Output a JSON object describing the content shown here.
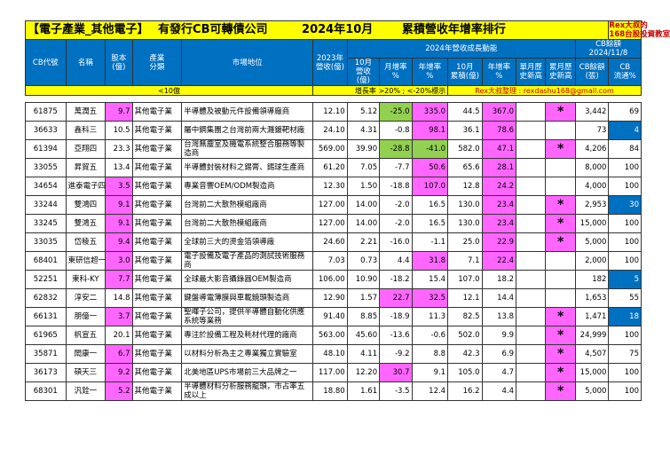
{
  "title": {
    "category": "【電子產業_其他電子】",
    "subtitle": "有發行CB可轉債公司",
    "month": "2024年10月",
    "ranking": "累積營收年增率排行",
    "rex_line1": "Rex大叔的",
    "rex_line2": "168台股投資教室"
  },
  "header": {
    "cb_code": "CB代號",
    "name": "名稱",
    "capital": "股本\n(億)",
    "industry": "產業\n分類",
    "market_position": "市場地位",
    "rev2023": "2023年\n營收(億)",
    "growth_group": "2024年營收成長動能",
    "oct_rev": "10月\n營收(億)",
    "mom": "月增率\n%",
    "yoy": "年增率\n%",
    "oct_cum": "10月\n累積(億)",
    "cum_yoy": "年增率\n%",
    "single_month_high": "單月歷\n史新高",
    "cum_month_high": "累月歷\n史新高",
    "cb_remaining_label": "CB餘額",
    "cb_date": "2024/11/8",
    "cb_balance": "CB餘額\n(張)",
    "cb_ratio": "CB\n流通%"
  },
  "note": {
    "small_cap": "<10億",
    "growth_legend": "增長率 >20% ; <-20%標示",
    "credit": "Rex大叔整理 : rexdashu168@gmail.com"
  },
  "rows": [
    {
      "code": "61875",
      "name": "萬潤五",
      "capital": "9.7",
      "cap_hl": true,
      "industry": "其他電子業",
      "position": "半導體及被動元件設備領導廠商",
      "rev2023": "12.10",
      "oct": "5.12",
      "mom": "-25.0",
      "mom_hl": "grn",
      "yoy": "335.0",
      "yoy_hl": "mag",
      "cum": "44.5",
      "cum_yoy": "367.0",
      "cum_yoy_hl": "mag",
      "smh": "",
      "cmh": "*",
      "cb_bal": "3,442",
      "cb_pct": "69",
      "pct_hl": ""
    },
    {
      "code": "36633",
      "name": "鑫科三",
      "capital": "10.5",
      "cap_hl": false,
      "industry": "其他電子業",
      "position": "屬中鋼集團之台灣前兩大濺鍍靶材廠",
      "rev2023": "24.10",
      "oct": "4.31",
      "mom": "-0.8",
      "mom_hl": "",
      "yoy": "98.1",
      "yoy_hl": "mag",
      "cum": "36.1",
      "cum_yoy": "78.6",
      "cum_yoy_hl": "mag",
      "smh": "",
      "cmh": "",
      "cb_bal": "73",
      "cb_pct": "4",
      "pct_hl": "blue"
    },
    {
      "code": "61394",
      "name": "亞翔四",
      "capital": "23.3",
      "cap_hl": false,
      "industry": "其他電子業",
      "position": "台灣無塵室及機電系統整合服務等製造商",
      "rev2023": "569.00",
      "oct": "39.90",
      "mom": "-28.8",
      "mom_hl": "grn",
      "yoy": "-41.0",
      "yoy_hl": "grn",
      "cum": "582.0",
      "cum_yoy": "47.1",
      "cum_yoy_hl": "mag",
      "smh": "",
      "cmh": "*",
      "cb_bal": "4,206",
      "cb_pct": "84",
      "pct_hl": ""
    },
    {
      "code": "33055",
      "name": "昇貿五",
      "capital": "13.4",
      "cap_hl": false,
      "industry": "其他電子業",
      "position": "半導體封裝材料之錫膏、錫球生產商",
      "rev2023": "61.20",
      "oct": "7.05",
      "mom": "-7.7",
      "mom_hl": "",
      "yoy": "50.6",
      "yoy_hl": "mag",
      "cum": "65.6",
      "cum_yoy": "28.1",
      "cum_yoy_hl": "mag",
      "smh": "",
      "cmh": "",
      "cb_bal": "8,000",
      "cb_pct": "100",
      "pct_hl": ""
    },
    {
      "code": "34654",
      "name": "進泰電子四",
      "capital": "3.5",
      "cap_hl": true,
      "industry": "其他電子業",
      "position": "專業音響OEM/ODM製造商",
      "rev2023": "12.30",
      "oct": "1.50",
      "mom": "-18.8",
      "mom_hl": "",
      "yoy": "107.0",
      "yoy_hl": "mag",
      "cum": "12.8",
      "cum_yoy": "24.2",
      "cum_yoy_hl": "mag",
      "smh": "",
      "cmh": "",
      "cb_bal": "4,000",
      "cb_pct": "100",
      "pct_hl": ""
    },
    {
      "code": "33244",
      "name": "雙鴻四",
      "capital": "9.1",
      "cap_hl": true,
      "industry": "其他電子業",
      "position": "台灣前二大散熱模組廠商",
      "rev2023": "127.00",
      "oct": "14.00",
      "mom": "-2.0",
      "mom_hl": "",
      "yoy": "16.5",
      "yoy_hl": "",
      "cum": "130.0",
      "cum_yoy": "23.4",
      "cum_yoy_hl": "mag",
      "smh": "",
      "cmh": "*",
      "cb_bal": "2,953",
      "cb_pct": "30",
      "pct_hl": "blue"
    },
    {
      "code": "33245",
      "name": "雙鴻五",
      "capital": "9.1",
      "cap_hl": true,
      "industry": "其他電子業",
      "position": "台灣前二大散熱模組廠商",
      "rev2023": "127.00",
      "oct": "14.00",
      "mom": "-2.0",
      "mom_hl": "",
      "yoy": "16.5",
      "yoy_hl": "",
      "cum": "130.0",
      "cum_yoy": "23.4",
      "cum_yoy_hl": "mag",
      "smh": "",
      "cmh": "*",
      "cb_bal": "15,000",
      "cb_pct": "100",
      "pct_hl": ""
    },
    {
      "code": "33035",
      "name": "岱稜五",
      "capital": "9.4",
      "cap_hl": true,
      "industry": "其他電子業",
      "position": "全球前三大的燙金箔領導廠",
      "rev2023": "24.60",
      "oct": "2.21",
      "mom": "-16.0",
      "mom_hl": "",
      "yoy": "-1.1",
      "yoy_hl": "",
      "cum": "25.0",
      "cum_yoy": "22.9",
      "cum_yoy_hl": "mag",
      "smh": "",
      "cmh": "*",
      "cb_bal": "5,000",
      "cb_pct": "100",
      "pct_hl": ""
    },
    {
      "code": "68401",
      "name": "東研信超一",
      "capital": "3.0",
      "cap_hl": true,
      "industry": "其他電子業",
      "position": "電子設備及電子產品的測試技術服務商",
      "rev2023": "7.03",
      "oct": "0.73",
      "mom": "4.4",
      "mom_hl": "",
      "yoy": "31.8",
      "yoy_hl": "mag",
      "cum": "7.1",
      "cum_yoy": "22.4",
      "cum_yoy_hl": "mag",
      "smh": "",
      "cmh": "",
      "cb_bal": "2,000",
      "cb_pct": "100",
      "pct_hl": ""
    },
    {
      "code": "52251",
      "name": "東科-KY",
      "capital": "7.7",
      "cap_hl": true,
      "industry": "其他電子業",
      "position": "全球最大影音攝錄器OEM製造商",
      "rev2023": "106.00",
      "oct": "10.90",
      "mom": "-18.2",
      "mom_hl": "",
      "yoy": "15.4",
      "yoy_hl": "",
      "cum": "107.0",
      "cum_yoy": "18.2",
      "cum_yoy_hl": "",
      "smh": "",
      "cmh": "",
      "cb_bal": "182",
      "cb_pct": "5",
      "pct_hl": "blue"
    },
    {
      "code": "62832",
      "name": "淳安二",
      "capital": "14.8",
      "cap_hl": false,
      "industry": "其他電子業",
      "position": "鍵盤導電薄膜與車載鏡頭製造商",
      "rev2023": "12.90",
      "oct": "1.57",
      "mom": "22.7",
      "mom_hl": "mag",
      "yoy": "32.5",
      "yoy_hl": "mag",
      "cum": "12.1",
      "cum_yoy": "14.4",
      "cum_yoy_hl": "",
      "smh": "",
      "cmh": "",
      "cb_bal": "1,653",
      "cb_pct": "55",
      "pct_hl": ""
    },
    {
      "code": "66131",
      "name": "朋億一",
      "capital": "3.7",
      "cap_hl": true,
      "industry": "其他電子業",
      "position": "聖暉子公司，提供半導體自動化供應系統等業務",
      "rev2023": "91.40",
      "oct": "8.85",
      "mom": "-18.9",
      "mom_hl": "",
      "yoy": "11.3",
      "yoy_hl": "",
      "cum": "82.5",
      "cum_yoy": "13.8",
      "cum_yoy_hl": "",
      "smh": "",
      "cmh": "*",
      "cb_bal": "1,471",
      "cb_pct": "18",
      "pct_hl": "blue"
    },
    {
      "code": "61965",
      "name": "帆宣五",
      "capital": "20.1",
      "cap_hl": false,
      "industry": "其他電子業",
      "position": "專注於設備工程及耗材代理的廠商",
      "rev2023": "563.00",
      "oct": "45.60",
      "mom": "-13.6",
      "mom_hl": "",
      "yoy": "-0.6",
      "yoy_hl": "",
      "cum": "502.0",
      "cum_yoy": "9.9",
      "cum_yoy_hl": "",
      "smh": "",
      "cmh": "*",
      "cb_bal": "24,999",
      "cb_pct": "100",
      "pct_hl": ""
    },
    {
      "code": "35871",
      "name": "閎康一",
      "capital": "6.7",
      "cap_hl": true,
      "industry": "其他電子業",
      "position": "以材料分析為主之專業獨立實驗室",
      "rev2023": "48.10",
      "oct": "4.11",
      "mom": "-9.2",
      "mom_hl": "",
      "yoy": "8.8",
      "yoy_hl": "",
      "cum": "42.3",
      "cum_yoy": "6.9",
      "cum_yoy_hl": "",
      "smh": "",
      "cmh": "*",
      "cb_bal": "4,507",
      "cb_pct": "75",
      "pct_hl": ""
    },
    {
      "code": "36173",
      "name": "碩天三",
      "capital": "9.2",
      "cap_hl": true,
      "industry": "其他電子業",
      "position": "北美地區UPS市場前三大品牌之一",
      "rev2023": "117.00",
      "oct": "12.20",
      "mom": "30.7",
      "mom_hl": "mag",
      "yoy": "9.1",
      "yoy_hl": "",
      "cum": "105.0",
      "cum_yoy": "4.7",
      "cum_yoy_hl": "",
      "smh": "",
      "cmh": "*",
      "cb_bal": "15,000",
      "cb_pct": "100",
      "pct_hl": ""
    },
    {
      "code": "68301",
      "name": "汎銓一",
      "capital": "5.2",
      "cap_hl": true,
      "industry": "其他電子業",
      "position": "半導體材料分析服務龍頭，市占率五成以上",
      "rev2023": "18.80",
      "oct": "1.61",
      "mom": "-3.5",
      "mom_hl": "",
      "yoy": "12.4",
      "yoy_hl": "",
      "cum": "16.2",
      "cum_yoy": "4.4",
      "cum_yoy_hl": "",
      "smh": "",
      "cmh": "*",
      "cb_bal": "5,000",
      "cb_pct": "100",
      "pct_hl": ""
    }
  ]
}
